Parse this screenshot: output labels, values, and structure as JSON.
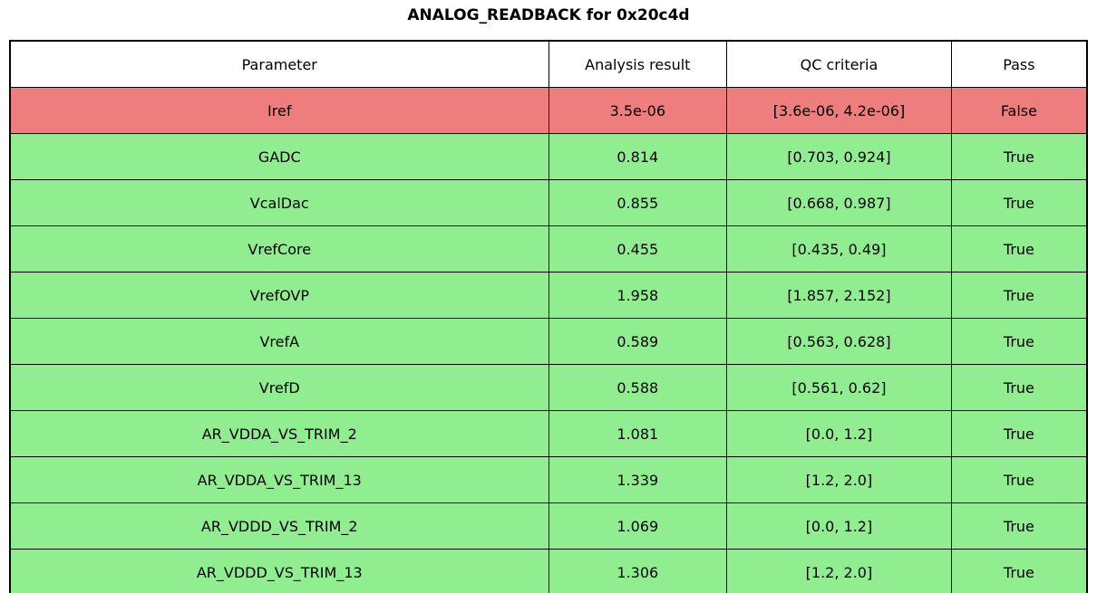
{
  "title": "ANALOG_READBACK for 0x20c4d",
  "colors": {
    "pass_row_bg": "#90ee90",
    "fail_row_bg": "#ee7d7d",
    "header_bg": "#ffffff",
    "border": "#000000"
  },
  "table": {
    "columns": [
      "Parameter",
      "Analysis result",
      "QC criteria",
      "Pass"
    ],
    "rows": [
      {
        "parameter": "Iref",
        "result": "3.5e-06",
        "criteria": "[3.6e-06, 4.2e-06]",
        "pass": "False"
      },
      {
        "parameter": "GADC",
        "result": "0.814",
        "criteria": "[0.703, 0.924]",
        "pass": "True"
      },
      {
        "parameter": "VcalDac",
        "result": "0.855",
        "criteria": "[0.668, 0.987]",
        "pass": "True"
      },
      {
        "parameter": "VrefCore",
        "result": "0.455",
        "criteria": "[0.435, 0.49]",
        "pass": "True"
      },
      {
        "parameter": "VrefOVP",
        "result": "1.958",
        "criteria": "[1.857, 2.152]",
        "pass": "True"
      },
      {
        "parameter": "VrefA",
        "result": "0.589",
        "criteria": "[0.563, 0.628]",
        "pass": "True"
      },
      {
        "parameter": "VrefD",
        "result": "0.588",
        "criteria": "[0.561, 0.62]",
        "pass": "True"
      },
      {
        "parameter": "AR_VDDA_VS_TRIM_2",
        "result": "1.081",
        "criteria": "[0.0, 1.2]",
        "pass": "True"
      },
      {
        "parameter": "AR_VDDA_VS_TRIM_13",
        "result": "1.339",
        "criteria": "[1.2, 2.0]",
        "pass": "True"
      },
      {
        "parameter": "AR_VDDD_VS_TRIM_2",
        "result": "1.069",
        "criteria": "[0.0, 1.2]",
        "pass": "True"
      },
      {
        "parameter": "AR_VDDD_VS_TRIM_13",
        "result": "1.306",
        "criteria": "[1.2, 2.0]",
        "pass": "True"
      }
    ]
  },
  "chart_data": {
    "type": "table",
    "title": "ANALOG_READBACK for 0x20c4d",
    "columns": [
      "Parameter",
      "Analysis result",
      "QC criteria",
      "Pass"
    ],
    "rows": [
      [
        "Iref",
        "3.5e-06",
        "[3.6e-06, 4.2e-06]",
        "False"
      ],
      [
        "GADC",
        "0.814",
        "[0.703, 0.924]",
        "True"
      ],
      [
        "VcalDac",
        "0.855",
        "[0.668, 0.987]",
        "True"
      ],
      [
        "VrefCore",
        "0.455",
        "[0.435, 0.49]",
        "True"
      ],
      [
        "VrefOVP",
        "1.958",
        "[1.857, 2.152]",
        "True"
      ],
      [
        "VrefA",
        "0.589",
        "[0.563, 0.628]",
        "True"
      ],
      [
        "VrefD",
        "0.588",
        "[0.561, 0.62]",
        "True"
      ],
      [
        "AR_VDDA_VS_TRIM_2",
        "1.081",
        "[0.0, 1.2]",
        "True"
      ],
      [
        "AR_VDDA_VS_TRIM_13",
        "1.339",
        "[1.2, 2.0]",
        "True"
      ],
      [
        "AR_VDDD_VS_TRIM_2",
        "1.069",
        "[0.0, 1.2]",
        "True"
      ],
      [
        "AR_VDDD_VS_TRIM_13",
        "1.306",
        "[1.2, 2.0]",
        "True"
      ]
    ],
    "row_status_color": {
      "True": "#90ee90",
      "False": "#ee7d7d"
    }
  }
}
